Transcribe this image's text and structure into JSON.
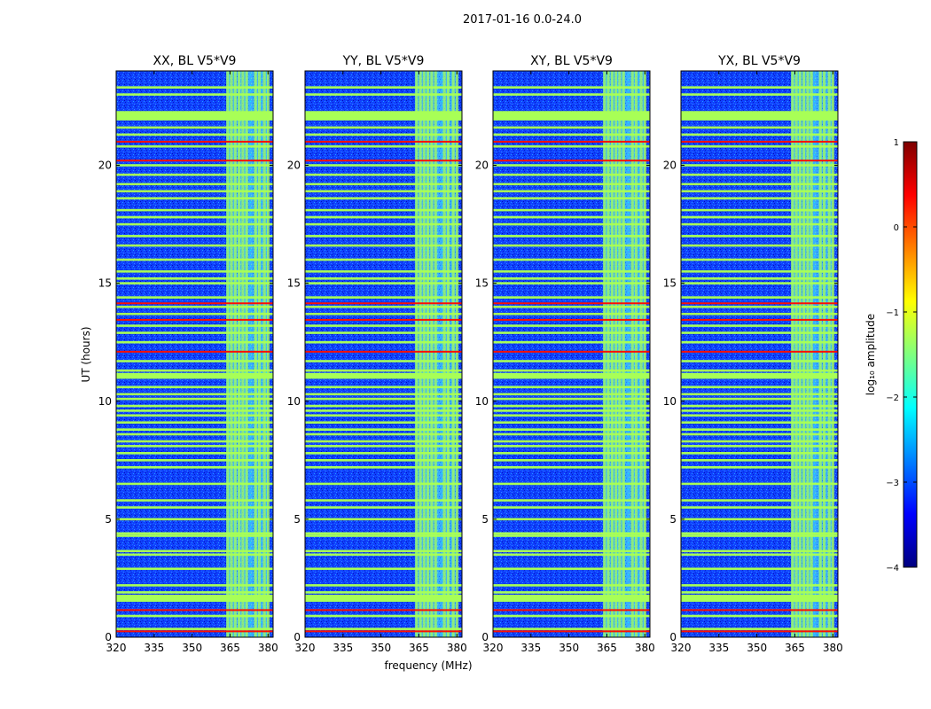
{
  "chart_data": {
    "type": "heatmap",
    "suptitle": "2017-01-16 0.0-24.0",
    "xlabel": "frequency (MHz)",
    "ylabel": "UT (hours)",
    "xlim": [
      320,
      382
    ],
    "ylim": [
      0,
      24
    ],
    "xticks": [
      320,
      335,
      350,
      365,
      380
    ],
    "yticks": [
      0,
      5,
      10,
      15,
      20
    ],
    "panels": [
      {
        "title": "XX, BL V5*V9"
      },
      {
        "title": "YY, BL V5*V9"
      },
      {
        "title": "XY, BL V5*V9"
      },
      {
        "title": "YX, BL V5*V9"
      }
    ],
    "colorbar": {
      "label": "log₁₀ amplitude",
      "range": [
        -4,
        1
      ],
      "ticks": [
        1,
        0,
        -1,
        -2,
        -3,
        -4
      ],
      "tick_labels": [
        "1",
        "0",
        "−1",
        "−2",
        "−3",
        "−4"
      ],
      "colormap": [
        "#00007f",
        "#0000ff",
        "#007fff",
        "#00ffff",
        "#7fff7f",
        "#ffff00",
        "#ff7f00",
        "#ff0000",
        "#7f0000"
      ]
    },
    "background_level": -3.0,
    "rfi_band_mhz": [
      363.5,
      380
    ],
    "rfi_channels_mhz": [
      363.5,
      365,
      366.5,
      368,
      369.5,
      371,
      374.5,
      376,
      378,
      379.5
    ],
    "hline_level_green": -1.3,
    "hline_level_red": 0.3,
    "hlines_green_hours": [
      0.35,
      0.9,
      1.6,
      1.75,
      1.9,
      2.2,
      2.9,
      3.5,
      3.65,
      4.3,
      4.4,
      5.0,
      5.5,
      5.8,
      6.5,
      7.2,
      7.5,
      7.8,
      8.1,
      8.3,
      8.6,
      8.8,
      9.1,
      9.4,
      9.6,
      9.8,
      10.1,
      10.3,
      10.6,
      11.0,
      11.1,
      11.3,
      11.7,
      12.5,
      12.9,
      13.2,
      13.7,
      14.0,
      14.4,
      15.0,
      15.2,
      15.5,
      16.0,
      16.6,
      17.0,
      17.5,
      17.8,
      18.1,
      18.6,
      18.9,
      19.2,
      19.6,
      20.0,
      20.8,
      21.3,
      21.6,
      23.0,
      23.3
    ],
    "hlines_red_hours": [
      0.25,
      1.15,
      12.1,
      13.45,
      14.15,
      20.2,
      21.0
    ],
    "hband_green_hours": [
      [
        21.9,
        22.3
      ],
      [
        1.5,
        1.8
      ],
      [
        11.0,
        11.2
      ]
    ],
    "annotations": []
  }
}
